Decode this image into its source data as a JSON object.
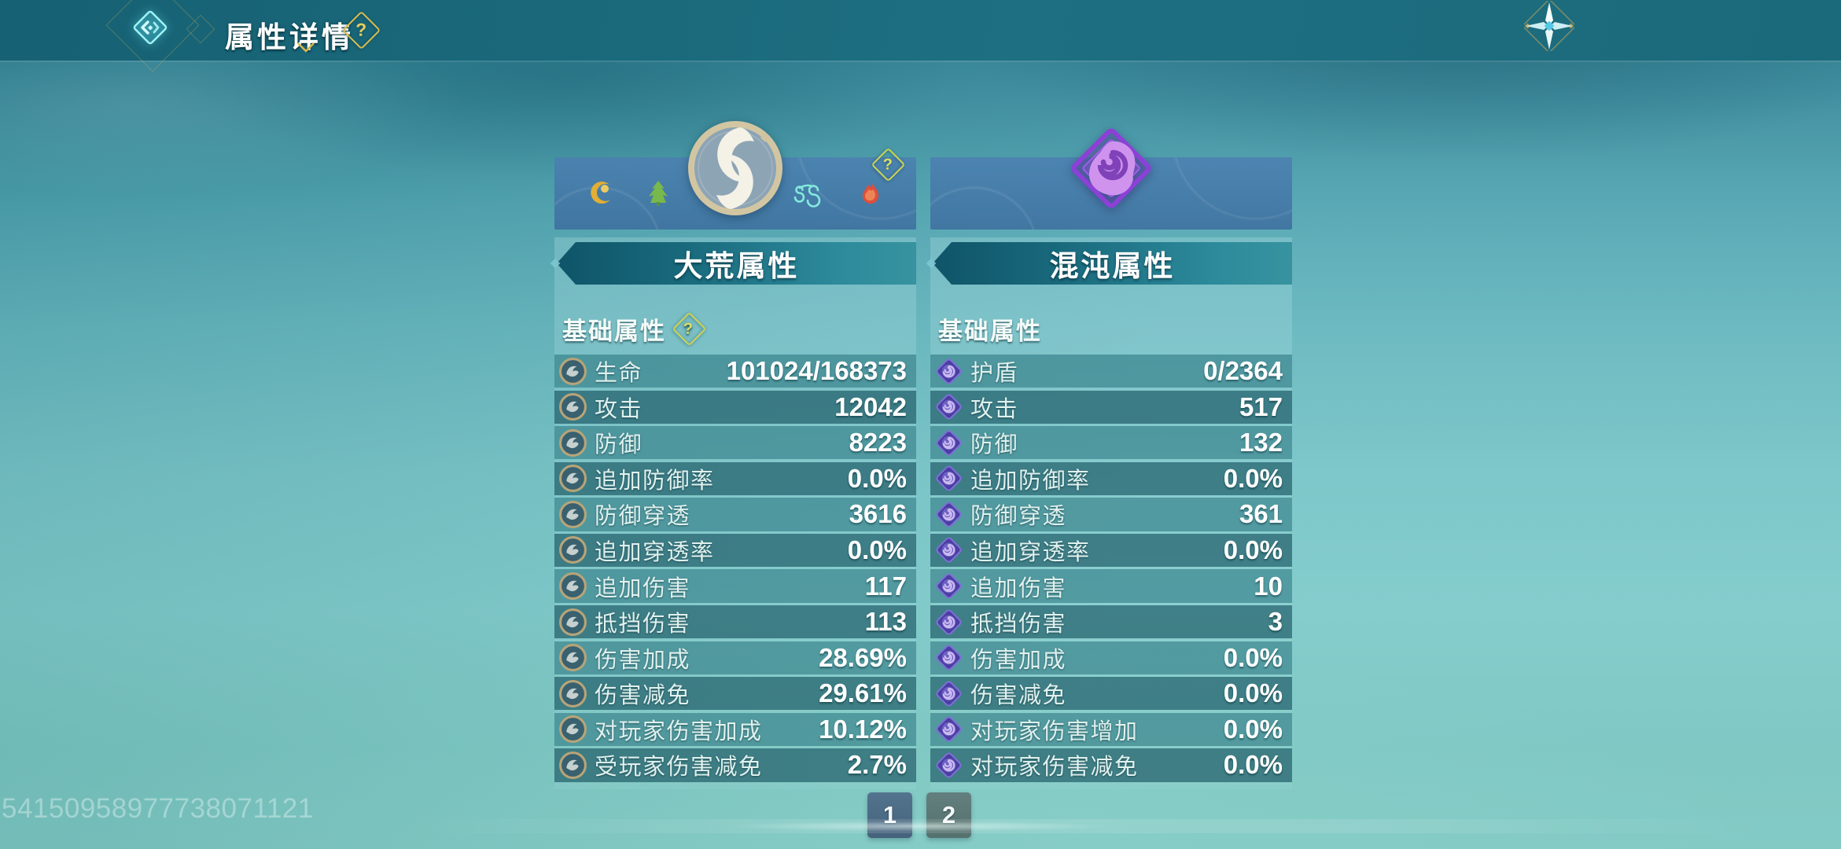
{
  "header": {
    "title": "属性详情",
    "help_glyph": "?"
  },
  "left_panel": {
    "title": "大荒属性",
    "section_label": "基础属性",
    "section_help_glyph": "?",
    "strip_help_glyph": "?",
    "element_icons": [
      "moon",
      "wood",
      "great-wild-emblem",
      "wind",
      "fire"
    ],
    "row_icon": "wild-swirl-coin",
    "rows": [
      {
        "label": "生命",
        "value": "101024/168373"
      },
      {
        "label": "攻击",
        "value": "12042"
      },
      {
        "label": "防御",
        "value": "8223"
      },
      {
        "label": "追加防御率",
        "value": "0.0%"
      },
      {
        "label": "防御穿透",
        "value": "3616"
      },
      {
        "label": "追加穿透率",
        "value": "0.0%"
      },
      {
        "label": "追加伤害",
        "value": "117"
      },
      {
        "label": "抵挡伤害",
        "value": "113"
      },
      {
        "label": "伤害加成",
        "value": "28.69%"
      },
      {
        "label": "伤害减免",
        "value": "29.61%"
      },
      {
        "label": "对玩家伤害加成",
        "value": "10.12%"
      },
      {
        "label": "受玩家伤害减免",
        "value": "2.7%"
      }
    ]
  },
  "right_panel": {
    "title": "混沌属性",
    "section_label": "基础属性",
    "emblem_icon": "chaos-spiral-diamond",
    "row_icon": "chaos-swirl-diamond",
    "rows": [
      {
        "label": "护盾",
        "value": "0/2364"
      },
      {
        "label": "攻击",
        "value": "517"
      },
      {
        "label": "防御",
        "value": "132"
      },
      {
        "label": "追加防御率",
        "value": "0.0%"
      },
      {
        "label": "防御穿透",
        "value": "361"
      },
      {
        "label": "追加穿透率",
        "value": "0.0%"
      },
      {
        "label": "追加伤害",
        "value": "10"
      },
      {
        "label": "抵挡伤害",
        "value": "3"
      },
      {
        "label": "伤害加成",
        "value": "0.0%"
      },
      {
        "label": "伤害减免",
        "value": "0.0%"
      },
      {
        "label": "对玩家伤害增加",
        "value": "0.0%"
      },
      {
        "label": "对玩家伤害减免",
        "value": "0.0%"
      }
    ]
  },
  "pagination": {
    "pages": [
      "1",
      "2"
    ],
    "active_page": "1"
  },
  "watermark": "54150958977738071121",
  "colors": {
    "accent_gold": "#dcbd4e",
    "panel_strip_blue": "#4a7cb0",
    "title_bar_teal": "#19697c",
    "row_dark": "#286c79",
    "row_light": "#3b8b94",
    "chaos_purple": "#a866dd",
    "back_cyan": "#9bf2f6"
  }
}
